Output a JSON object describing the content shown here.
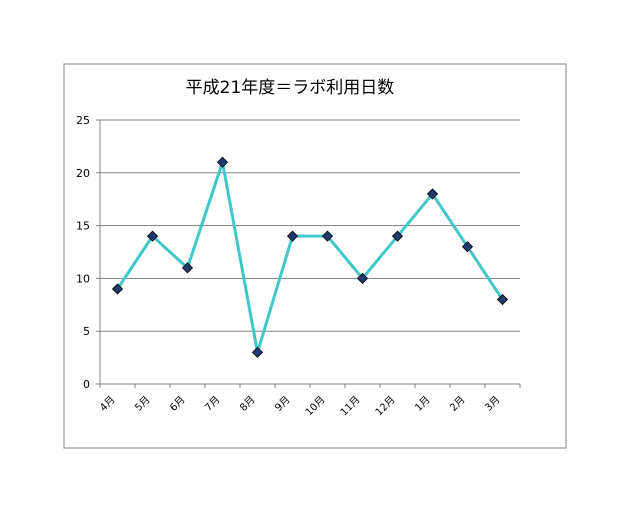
{
  "chart_data": {
    "type": "line",
    "title": "平成21年度＝ラボ利用日数",
    "xlabel": "",
    "ylabel": "",
    "categories": [
      "4月",
      "5月",
      "6月",
      "7月",
      "8月",
      "9月",
      "10月",
      "11月",
      "12月",
      "1月",
      "2月",
      "3月"
    ],
    "values": [
      9,
      14,
      11,
      21,
      3,
      14,
      14,
      10,
      14,
      18,
      13,
      8
    ],
    "ylim": [
      0,
      25
    ],
    "yticks": [
      "0",
      "5",
      "10",
      "15",
      "20",
      "25"
    ],
    "grid": true,
    "legend": "none",
    "colors": {
      "line": "#40C8C8",
      "marker": "#1F3A6E",
      "grid": "#808080"
    }
  }
}
